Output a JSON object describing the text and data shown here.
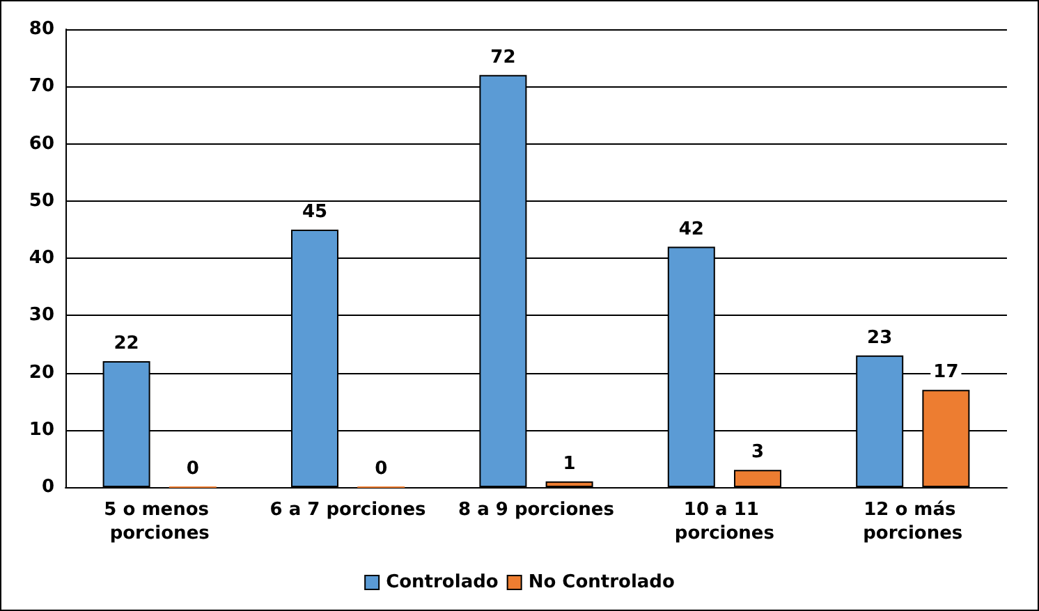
{
  "chart_data": {
    "type": "bar",
    "categories": [
      "5 o menos porciones",
      "6 a 7 porciones",
      "8 a 9 porciones",
      "10 a 11 porciones",
      "12 o más porciones"
    ],
    "series": [
      {
        "name": "Controlado",
        "color": "#5b9bd5",
        "values": [
          22,
          45,
          72,
          42,
          23
        ]
      },
      {
        "name": "No Controlado",
        "color": "#ed7d31",
        "values": [
          0,
          0,
          1,
          3,
          17
        ]
      }
    ],
    "ylim": [
      0,
      80
    ],
    "yticks": [
      0,
      10,
      20,
      30,
      40,
      50,
      60,
      70,
      80
    ],
    "grid": "y",
    "legend": "bottom",
    "data_labels": true
  }
}
